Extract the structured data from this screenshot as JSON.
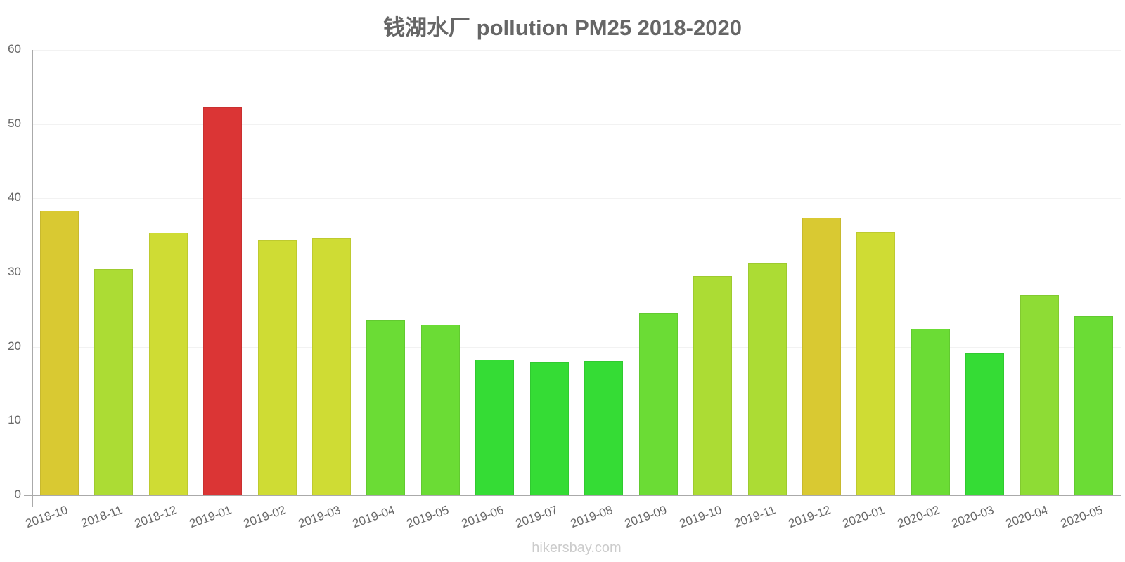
{
  "title": "钱湖水厂 pollution PM25 2018-2020",
  "watermark": "hikersbay.com",
  "y_ticks": [
    "0",
    "10",
    "20",
    "30",
    "40",
    "50",
    "60"
  ],
  "chart_data": {
    "type": "bar",
    "title": "钱湖水厂 pollution PM25 2018-2020",
    "xlabel": "",
    "ylabel": "",
    "ylim": [
      0,
      60
    ],
    "yticks": [
      0,
      10,
      20,
      30,
      40,
      50,
      60
    ],
    "grid": true,
    "legend": null,
    "categories": [
      "2018-10",
      "2018-11",
      "2018-12",
      "2019-01",
      "2019-02",
      "2019-03",
      "2019-04",
      "2019-05",
      "2019-06",
      "2019-07",
      "2019-08",
      "2019-09",
      "2019-10",
      "2019-11",
      "2019-12",
      "2020-01",
      "2020-02",
      "2020-03",
      "2020-04",
      "2020-05"
    ],
    "values": [
      38.3,
      30.5,
      35.4,
      52.2,
      34.4,
      34.6,
      23.6,
      23.0,
      18.3,
      17.9,
      18.1,
      24.5,
      29.5,
      31.2,
      37.4,
      35.5,
      22.4,
      19.1,
      27.0,
      24.1
    ],
    "colors": [
      "#d9c932",
      "#acdc34",
      "#cfdc34",
      "#db3535",
      "#cfdc34",
      "#cfdc34",
      "#6bdc35",
      "#6bdc35",
      "#35dc35",
      "#35dc35",
      "#35dc35",
      "#6bdc35",
      "#acdc34",
      "#acdc34",
      "#d9c932",
      "#cfdc34",
      "#6bdc35",
      "#35dc35",
      "#8edc35",
      "#6bdc35"
    ]
  }
}
